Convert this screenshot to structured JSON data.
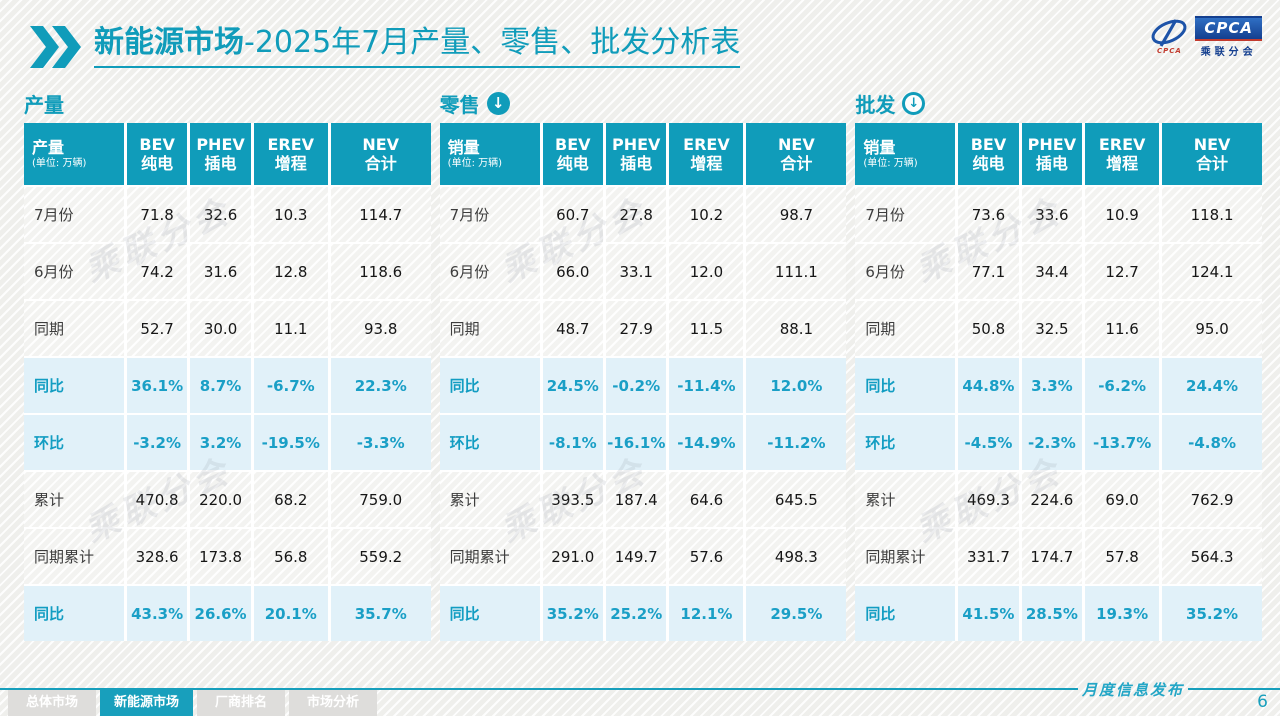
{
  "title": {
    "highlight": "新能源市场",
    "rest": "-2025年7月产量、零售、批发分析表"
  },
  "logo": {
    "acronym": "CPCA",
    "cn_name": "乘联分会",
    "swoosh_sub": "CPCA"
  },
  "watermark": "乘联分会",
  "colors": {
    "accent": "#109cba",
    "pct_text": "#1a9fc6",
    "pct_row_bg": "#e1f1f9"
  },
  "sections": [
    {
      "label": "产量",
      "icon": null,
      "corner_label": "产量",
      "unit": "(单位: 万辆)",
      "columns": [
        [
          "BEV",
          "纯电"
        ],
        [
          "PHEV",
          "插电"
        ],
        [
          "EREV",
          "增程"
        ],
        [
          "NEV",
          "合计"
        ]
      ],
      "rows": [
        {
          "label": "7月份",
          "type": "data",
          "values": [
            "71.8",
            "32.6",
            "10.3",
            "114.7"
          ]
        },
        {
          "label": "6月份",
          "type": "data",
          "values": [
            "74.2",
            "31.6",
            "12.8",
            "118.6"
          ]
        },
        {
          "label": "同期",
          "type": "data",
          "values": [
            "52.7",
            "30.0",
            "11.1",
            "93.8"
          ]
        },
        {
          "label": "同比",
          "type": "pct",
          "values": [
            "36.1%",
            "8.7%",
            "-6.7%",
            "22.3%"
          ]
        },
        {
          "label": "环比",
          "type": "pct",
          "values": [
            "-3.2%",
            "3.2%",
            "-19.5%",
            "-3.3%"
          ]
        },
        {
          "label": "累计",
          "type": "data",
          "values": [
            "470.8",
            "220.0",
            "68.2",
            "759.0"
          ]
        },
        {
          "label": "同期累计",
          "type": "data",
          "values": [
            "328.6",
            "173.8",
            "56.8",
            "559.2"
          ]
        },
        {
          "label": "同比",
          "type": "pct",
          "values": [
            "43.3%",
            "26.6%",
            "20.1%",
            "35.7%"
          ]
        }
      ]
    },
    {
      "label": "零售",
      "icon": "arrow-down-circle-filled-icon",
      "corner_label": "销量",
      "unit": "(单位: 万辆)",
      "columns": [
        [
          "BEV",
          "纯电"
        ],
        [
          "PHEV",
          "插电"
        ],
        [
          "EREV",
          "增程"
        ],
        [
          "NEV",
          "合计"
        ]
      ],
      "rows": [
        {
          "label": "7月份",
          "type": "data",
          "values": [
            "60.7",
            "27.8",
            "10.2",
            "98.7"
          ]
        },
        {
          "label": "6月份",
          "type": "data",
          "values": [
            "66.0",
            "33.1",
            "12.0",
            "111.1"
          ]
        },
        {
          "label": "同期",
          "type": "data",
          "values": [
            "48.7",
            "27.9",
            "11.5",
            "88.1"
          ]
        },
        {
          "label": "同比",
          "type": "pct",
          "values": [
            "24.5%",
            "-0.2%",
            "-11.4%",
            "12.0%"
          ]
        },
        {
          "label": "环比",
          "type": "pct",
          "values": [
            "-8.1%",
            "-16.1%",
            "-14.9%",
            "-11.2%"
          ]
        },
        {
          "label": "累计",
          "type": "data",
          "values": [
            "393.5",
            "187.4",
            "64.6",
            "645.5"
          ]
        },
        {
          "label": "同期累计",
          "type": "data",
          "values": [
            "291.0",
            "149.7",
            "57.6",
            "498.3"
          ]
        },
        {
          "label": "同比",
          "type": "pct",
          "values": [
            "35.2%",
            "25.2%",
            "12.1%",
            "29.5%"
          ]
        }
      ]
    },
    {
      "label": "批发",
      "icon": "arrow-down-circle-outline-icon",
      "corner_label": "销量",
      "unit": "(单位: 万辆)",
      "columns": [
        [
          "BEV",
          "纯电"
        ],
        [
          "PHEV",
          "插电"
        ],
        [
          "EREV",
          "增程"
        ],
        [
          "NEV",
          "合计"
        ]
      ],
      "rows": [
        {
          "label": "7月份",
          "type": "data",
          "values": [
            "73.6",
            "33.6",
            "10.9",
            "118.1"
          ]
        },
        {
          "label": "6月份",
          "type": "data",
          "values": [
            "77.1",
            "34.4",
            "12.7",
            "124.1"
          ]
        },
        {
          "label": "同期",
          "type": "data",
          "values": [
            "50.8",
            "32.5",
            "11.6",
            "95.0"
          ]
        },
        {
          "label": "同比",
          "type": "pct",
          "values": [
            "44.8%",
            "3.3%",
            "-6.2%",
            "24.4%"
          ]
        },
        {
          "label": "环比",
          "type": "pct",
          "values": [
            "-4.5%",
            "-2.3%",
            "-13.7%",
            "-4.8%"
          ]
        },
        {
          "label": "累计",
          "type": "data",
          "values": [
            "469.3",
            "224.6",
            "69.0",
            "762.9"
          ]
        },
        {
          "label": "同期累计",
          "type": "data",
          "values": [
            "331.7",
            "174.7",
            "57.8",
            "564.3"
          ]
        },
        {
          "label": "同比",
          "type": "pct",
          "values": [
            "41.5%",
            "28.5%",
            "19.3%",
            "35.2%"
          ]
        }
      ]
    }
  ],
  "footer": {
    "tabs": [
      {
        "label": "总体市场",
        "active": false
      },
      {
        "label": "新能源市场",
        "active": true
      },
      {
        "label": "厂商排名",
        "active": false
      },
      {
        "label": "市场分析",
        "active": false
      }
    ],
    "note": "月度信息发布",
    "page": "6"
  }
}
